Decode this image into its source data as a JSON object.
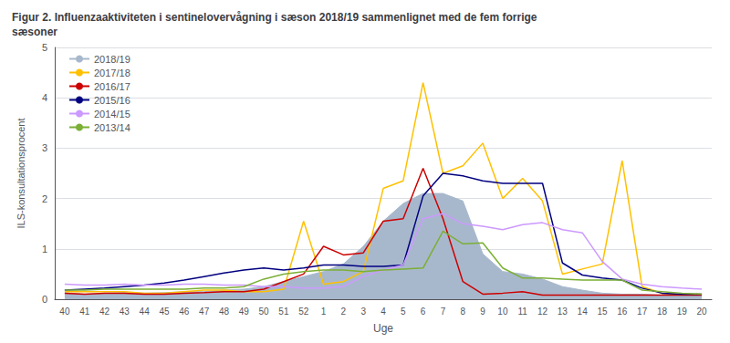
{
  "chart_data": {
    "type": "line",
    "title": "Figur 2. Influenzaaktiviteten i sentinelovervågning i sæson 2018/19 sammenlignet med de fem forrige\nsæsoner",
    "xlabel": "Uge",
    "ylabel": "ILS-konsultationsprocent",
    "categories": [
      "40",
      "41",
      "42",
      "43",
      "44",
      "45",
      "46",
      "47",
      "48",
      "49",
      "50",
      "51",
      "52",
      "1",
      "2",
      "3",
      "4",
      "5",
      "6",
      "7",
      "8",
      "9",
      "10",
      "11",
      "12",
      "13",
      "14",
      "15",
      "16",
      "17",
      "18",
      "19",
      "20"
    ],
    "ylim": [
      0,
      5
    ],
    "yticks": [
      0,
      1,
      2,
      3,
      4,
      5
    ],
    "grid": true,
    "legend": "upper left",
    "series": [
      {
        "name": "2018/19",
        "type": "area",
        "color": "#a8b8cc",
        "values": [
          0.13,
          0.1,
          0.12,
          0.13,
          0.12,
          0.13,
          0.15,
          0.15,
          0.18,
          0.2,
          0.25,
          0.35,
          0.45,
          0.55,
          0.7,
          1.05,
          1.55,
          1.9,
          2.1,
          2.1,
          1.95,
          0.9,
          0.55,
          0.5,
          0.4,
          0.25,
          0.18,
          0.12,
          0.1,
          0.1,
          0.08,
          0.08,
          0.08
        ]
      },
      {
        "name": "2017/18",
        "type": "line",
        "color": "#FFC000",
        "values": [
          0.15,
          0.15,
          0.15,
          0.15,
          0.12,
          0.12,
          0.15,
          0.18,
          0.18,
          0.15,
          0.15,
          0.2,
          1.55,
          0.3,
          0.35,
          0.55,
          2.2,
          2.35,
          4.3,
          2.5,
          2.65,
          3.1,
          2.0,
          2.4,
          1.95,
          0.5,
          0.6,
          0.7,
          2.75,
          0.25,
          0.12,
          0.1,
          0.1
        ]
      },
      {
        "name": "2016/17",
        "type": "line",
        "color": "#CC0000",
        "values": [
          0.12,
          0.1,
          0.12,
          0.12,
          0.1,
          0.1,
          0.12,
          0.13,
          0.15,
          0.15,
          0.2,
          0.35,
          0.5,
          1.05,
          0.88,
          0.92,
          1.55,
          1.6,
          2.6,
          1.6,
          0.35,
          0.1,
          0.12,
          0.15,
          0.08,
          0.08,
          0.08,
          0.08,
          0.08,
          0.08,
          0.08,
          0.08,
          0.08
        ]
      },
      {
        "name": "2015/16",
        "type": "line",
        "color": "#000080",
        "values": [
          0.18,
          0.2,
          0.22,
          0.25,
          0.28,
          0.32,
          0.38,
          0.45,
          0.52,
          0.58,
          0.62,
          0.58,
          0.62,
          0.68,
          0.68,
          0.65,
          0.65,
          0.68,
          2.05,
          2.5,
          2.45,
          2.35,
          2.3,
          2.3,
          2.3,
          0.72,
          0.48,
          0.42,
          0.38,
          0.22,
          0.12,
          0.1,
          0.1
        ]
      },
      {
        "name": "2014/15",
        "type": "line",
        "color": "#CC99FF",
        "values": [
          0.3,
          0.28,
          0.28,
          0.3,
          0.28,
          0.28,
          0.3,
          0.3,
          0.28,
          0.28,
          0.25,
          0.25,
          0.22,
          0.22,
          0.25,
          0.45,
          0.58,
          0.68,
          1.6,
          1.7,
          1.5,
          1.45,
          1.38,
          1.48,
          1.52,
          1.38,
          1.32,
          0.75,
          0.4,
          0.3,
          0.25,
          0.22,
          0.2
        ]
      },
      {
        "name": "2013/14",
        "type": "line",
        "color": "#7BAF35",
        "values": [
          0.18,
          0.18,
          0.2,
          0.2,
          0.2,
          0.2,
          0.2,
          0.22,
          0.22,
          0.25,
          0.4,
          0.5,
          0.55,
          0.58,
          0.58,
          0.55,
          0.58,
          0.6,
          0.62,
          1.35,
          1.1,
          1.12,
          0.62,
          0.42,
          0.42,
          0.4,
          0.38,
          0.38,
          0.38,
          0.18,
          0.15,
          0.12,
          0.1
        ]
      }
    ]
  }
}
